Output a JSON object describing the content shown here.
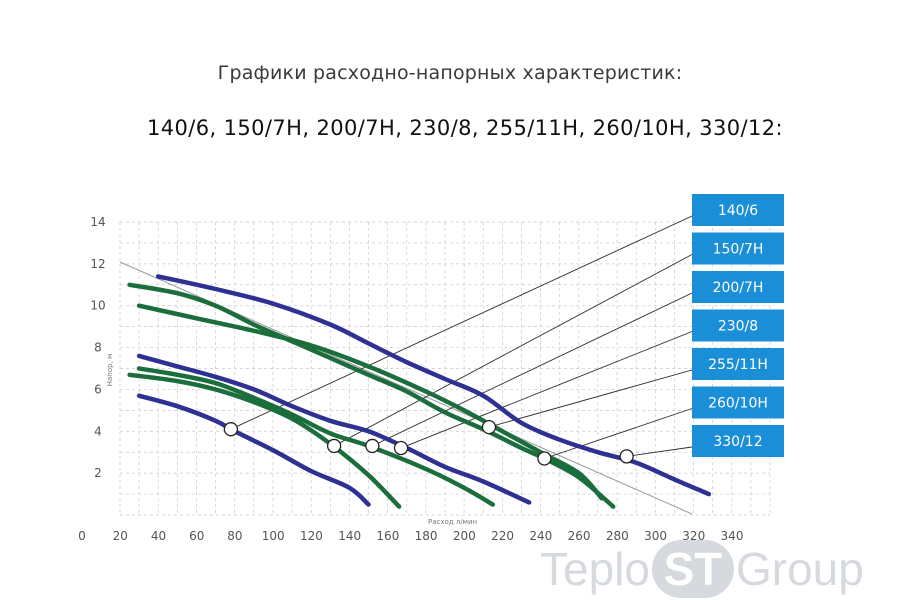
{
  "title": "Графики расходно-напорных характеристик:",
  "subtitle": "140/6, 150/7H, 200/7H, 230/8, 255/11H, 260/10H, 330/12:",
  "watermark": {
    "left": "Teplo",
    "mid": "ST",
    "right": "Group"
  },
  "chart_data": {
    "type": "line",
    "xlabel": "Расход л/мин",
    "ylabel": "Напор, м",
    "xlim": [
      0,
      340
    ],
    "ylim": [
      0,
      14
    ],
    "x_ticks": [
      0,
      20,
      40,
      60,
      80,
      100,
      120,
      140,
      160,
      180,
      200,
      220,
      240,
      260,
      280,
      300,
      320,
      340
    ],
    "y_ticks": [
      2,
      4,
      6,
      8,
      10,
      12,
      14
    ],
    "grid": true,
    "legend_position": "right",
    "legend": [
      "140/6",
      "150/7H",
      "200/7H",
      "230/8",
      "255/11H",
      "260/10H",
      "330/12"
    ],
    "series": [
      {
        "name": "140/6",
        "color": "#2e3192",
        "marker": [
          58,
          4.1
        ],
        "points": [
          [
            10,
            5.7
          ],
          [
            30,
            5.2
          ],
          [
            50,
            4.5
          ],
          [
            60,
            4.0
          ],
          [
            80,
            3.1
          ],
          [
            100,
            2.1
          ],
          [
            120,
            1.3
          ],
          [
            130,
            0.5
          ]
        ]
      },
      {
        "name": "150/7H",
        "color": "#1b6e3c",
        "marker": [
          112,
          3.3
        ],
        "points": [
          [
            5,
            6.7
          ],
          [
            30,
            6.4
          ],
          [
            50,
            6.0
          ],
          [
            70,
            5.4
          ],
          [
            90,
            4.6
          ],
          [
            110,
            3.4
          ],
          [
            130,
            1.9
          ],
          [
            146,
            0.4
          ]
        ]
      },
      {
        "name": "200/7H",
        "color": "#1b6e3c",
        "marker": [
          132,
          3.3
        ],
        "points": [
          [
            10,
            7.0
          ],
          [
            30,
            6.7
          ],
          [
            50,
            6.3
          ],
          [
            70,
            5.6
          ],
          [
            90,
            4.8
          ],
          [
            110,
            3.9
          ],
          [
            130,
            3.3
          ],
          [
            160,
            2.2
          ],
          [
            180,
            1.3
          ],
          [
            195,
            0.5
          ]
        ]
      },
      {
        "name": "230/8",
        "color": "#2e3192",
        "marker": [
          147,
          3.2
        ],
        "points": [
          [
            10,
            7.6
          ],
          [
            30,
            7.1
          ],
          [
            50,
            6.6
          ],
          [
            70,
            6.0
          ],
          [
            90,
            5.2
          ],
          [
            110,
            4.5
          ],
          [
            130,
            4.0
          ],
          [
            150,
            3.2
          ],
          [
            170,
            2.3
          ],
          [
            190,
            1.6
          ],
          [
            214,
            0.6
          ]
        ]
      },
      {
        "name": "255/11H",
        "color": "#1b6e3c",
        "marker": [
          193,
          4.2
        ],
        "points": [
          [
            10,
            10.0
          ],
          [
            40,
            9.4
          ],
          [
            70,
            8.8
          ],
          [
            100,
            8.1
          ],
          [
            130,
            7.1
          ],
          [
            160,
            5.9
          ],
          [
            180,
            5.0
          ],
          [
            200,
            4.0
          ],
          [
            220,
            3.0
          ],
          [
            240,
            2.0
          ],
          [
            252,
            0.8
          ]
        ]
      },
      {
        "name": "260/10H",
        "color": "#1b6e3c",
        "marker": [
          222,
          2.7
        ],
        "points": [
          [
            5,
            11.0
          ],
          [
            30,
            10.6
          ],
          [
            50,
            10.0
          ],
          [
            70,
            9.1
          ],
          [
            90,
            8.3
          ],
          [
            110,
            7.5
          ],
          [
            130,
            6.7
          ],
          [
            150,
            5.9
          ],
          [
            170,
            4.9
          ],
          [
            190,
            4.1
          ],
          [
            210,
            3.2
          ],
          [
            222,
            2.7
          ],
          [
            240,
            1.8
          ],
          [
            258,
            0.4
          ]
        ]
      },
      {
        "name": "330/12",
        "color": "#2e3192",
        "marker": [
          265,
          2.8
        ],
        "points": [
          [
            20,
            11.4
          ],
          [
            50,
            10.8
          ],
          [
            80,
            10.1
          ],
          [
            110,
            9.1
          ],
          [
            130,
            8.2
          ],
          [
            150,
            7.3
          ],
          [
            170,
            6.5
          ],
          [
            190,
            5.7
          ],
          [
            210,
            4.4
          ],
          [
            230,
            3.6
          ],
          [
            250,
            3.0
          ],
          [
            270,
            2.5
          ],
          [
            290,
            1.7
          ],
          [
            308,
            1.0
          ]
        ]
      }
    ]
  }
}
